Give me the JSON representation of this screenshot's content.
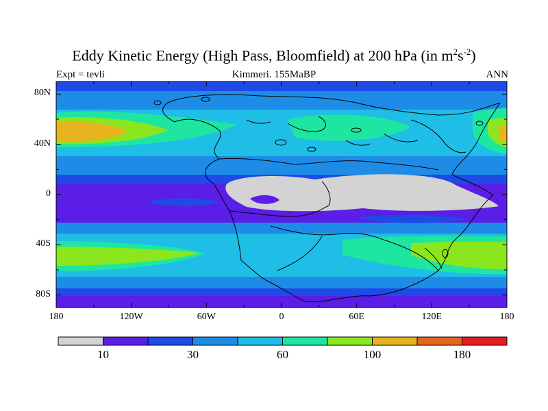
{
  "title": {
    "main": "Eddy Kinetic Energy (High Pass, Bloomfield) at 200 hPa (in m",
    "sup1": "2",
    "mid": "s",
    "sup2": "-2",
    "end": ")"
  },
  "subtitle": {
    "left": "Expt = tevli",
    "center": "Kimmeri. 155MaBP",
    "right": "ANN"
  },
  "map": {
    "lat_labels": [
      "80N",
      "40N",
      "0",
      "40S",
      "80S"
    ],
    "lat_values": [
      80,
      40,
      0,
      -40,
      -80
    ],
    "lon_labels": [
      "180",
      "120W",
      "60W",
      "0",
      "60E",
      "120E",
      "180"
    ],
    "lon_values": [
      -180,
      -120,
      -60,
      0,
      60,
      120,
      180
    ],
    "lat_range": [
      -90,
      90
    ],
    "lon_range": [
      -180,
      180
    ]
  },
  "colorbar": {
    "colors": [
      "#d3d3d3",
      "#5a1ee6",
      "#1e4be6",
      "#1e8ce6",
      "#1ebee6",
      "#1ee6a0",
      "#8ce61e",
      "#e6b41e",
      "#e6641e",
      "#e61e1e"
    ],
    "labels": [
      "10",
      "30",
      "60",
      "100",
      "180"
    ],
    "label_boundaries": [
      1,
      3,
      5,
      7,
      9
    ]
  }
}
